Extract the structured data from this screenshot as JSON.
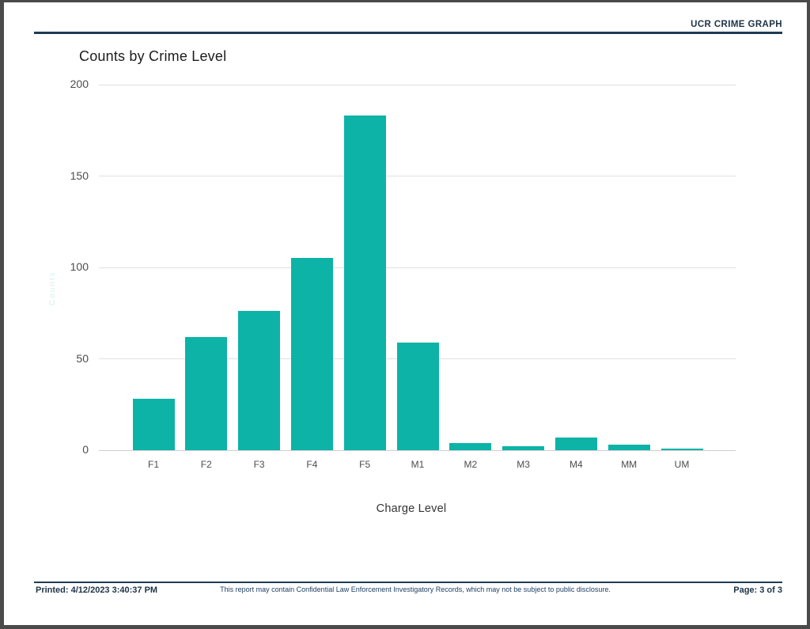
{
  "header": {
    "title": "UCR CRIME GRAPH"
  },
  "footer": {
    "printed": "Printed: 4/12/2023 3:40:37 PM",
    "disclaimer": "This report may contain Confidential Law Enforcement Investigatory Records, which may not be subject to public disclosure.",
    "page": "Page: 3 of 3"
  },
  "colors": {
    "bar": "#0db3a7",
    "navy_rule": "#1d3c55",
    "gridline": "#e0e0e0",
    "tick_text": "#4d4d4d"
  },
  "chart_data": {
    "type": "bar",
    "title": "Counts by Crime Level",
    "categories": [
      "F1",
      "F2",
      "F3",
      "F4",
      "F5",
      "M1",
      "M2",
      "M3",
      "M4",
      "MM",
      "UM"
    ],
    "values": [
      28,
      62,
      76,
      105,
      183,
      59,
      4,
      2,
      7,
      3,
      1
    ],
    "xlabel": "Charge Level",
    "ylabel": "Counts",
    "ylim": [
      0,
      200
    ],
    "yticks": [
      0,
      50,
      100,
      150,
      200
    ],
    "grid": true,
    "legend": false,
    "bar_color": "#0db3a7"
  }
}
